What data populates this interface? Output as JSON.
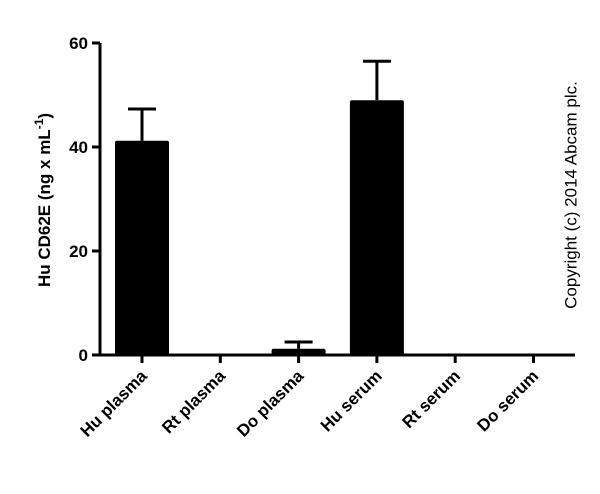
{
  "chart_data": {
    "type": "bar",
    "ylabel": "Hu CD62E (ng x mL",
    "ylabel_sup": "-1",
    "ylabel_end": ")",
    "annotation": "Copyright (c) 2014 Abcam plc.",
    "categories": [
      "Hu plasma",
      "Rt plasma",
      "Do plasma",
      "Hu serum",
      "Rt serum",
      "Do serum"
    ],
    "values": [
      41.2,
      0,
      1.2,
      49.0,
      0,
      0
    ],
    "errors": [
      6.1,
      null,
      1.3,
      7.5,
      null,
      null
    ],
    "color": "#000000",
    "ylim": [
      0,
      60
    ],
    "yticks": [
      0,
      20,
      40,
      60
    ]
  }
}
